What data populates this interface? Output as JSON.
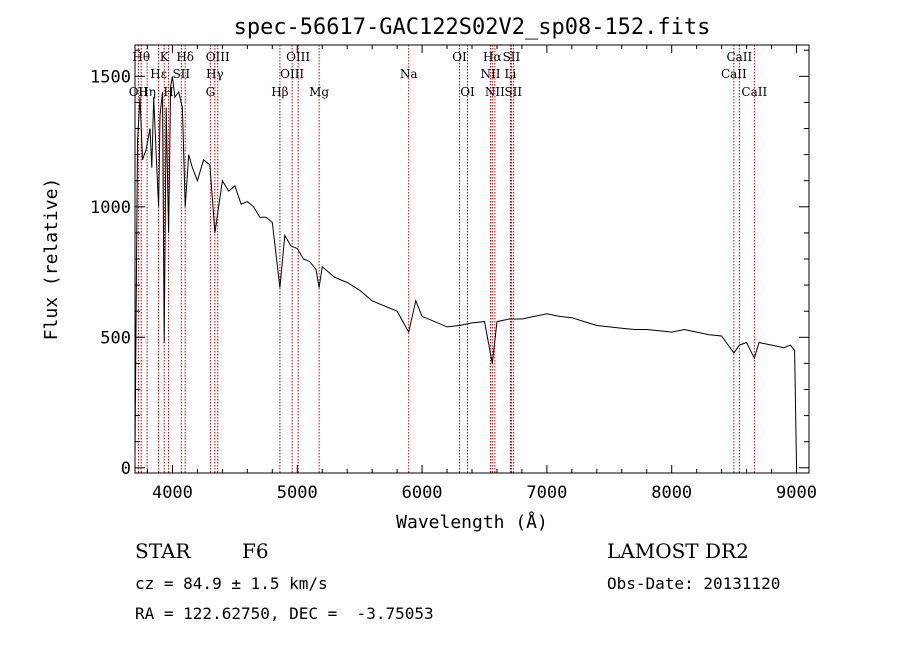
{
  "chart_data": {
    "type": "line",
    "title": "spec-56617-GAC122S02V2_sp08-152.fits",
    "xlabel": "Wavelength (Å)",
    "ylabel": "Flux (relative)",
    "xlim": [
      3700,
      9100
    ],
    "ylim": [
      -20,
      1620
    ],
    "x_ticks": [
      4000,
      5000,
      6000,
      7000,
      8000,
      9000
    ],
    "x_tick_labels": [
      "4000",
      "5000",
      "6000",
      "7000",
      "8000",
      "9000"
    ],
    "y_ticks": [
      0,
      500,
      1000,
      1500
    ],
    "y_tick_labels": [
      "0",
      "500",
      "1000",
      "1500"
    ],
    "grid": false,
    "series": [
      {
        "color": "#000000",
        "x": [
          3700,
          3720,
          3740,
          3760,
          3790,
          3820,
          3835,
          3850,
          3870,
          3889,
          3900,
          3920,
          3934,
          3950,
          3969,
          3985,
          4000,
          4020,
          4050,
          4080,
          4102,
          4130,
          4160,
          4200,
          4250,
          4300,
          4340,
          4400,
          4450,
          4500,
          4550,
          4600,
          4650,
          4700,
          4750,
          4800,
          4861,
          4900,
          4950,
          5000,
          5050,
          5100,
          5150,
          5175,
          5200,
          5300,
          5400,
          5500,
          5600,
          5700,
          5800,
          5893,
          5950,
          6000,
          6100,
          6200,
          6300,
          6400,
          6500,
          6563,
          6600,
          6700,
          6800,
          6900,
          7000,
          7100,
          7200,
          7300,
          7400,
          7500,
          7600,
          7700,
          7800,
          7900,
          8000,
          8100,
          8200,
          8300,
          8400,
          8498,
          8542,
          8600,
          8662,
          8700,
          8800,
          8900,
          8950,
          8985,
          9000
        ],
        "y": [
          50,
          1250,
          1420,
          1180,
          1220,
          1300,
          1150,
          1420,
          1200,
          1000,
          1350,
          1440,
          480,
          1380,
          900,
          1460,
          1500,
          1420,
          1440,
          1380,
          1000,
          1200,
          1150,
          1100,
          1180,
          1160,
          900,
          1100,
          1060,
          1080,
          1010,
          1020,
          1000,
          960,
          960,
          940,
          690,
          890,
          850,
          840,
          800,
          790,
          760,
          690,
          770,
          730,
          710,
          680,
          640,
          620,
          600,
          520,
          640,
          580,
          560,
          540,
          545,
          555,
          560,
          400,
          560,
          570,
          570,
          580,
          590,
          580,
          575,
          560,
          545,
          540,
          535,
          530,
          530,
          525,
          520,
          530,
          520,
          510,
          505,
          440,
          470,
          480,
          420,
          480,
          470,
          460,
          470,
          450,
          10
        ]
      }
    ],
    "line_markers": [
      {
        "wavelength": 3727,
        "label": "OII",
        "row": 3,
        "dy": 0
      },
      {
        "wavelength": 3750,
        "label": "Hθ",
        "row": 1,
        "dy": 0
      },
      {
        "wavelength": 3797,
        "label": "Hη",
        "row": 3,
        "dy": 0
      },
      {
        "wavelength": 3889,
        "label": "Hε",
        "row": 2,
        "dy": 0
      },
      {
        "wavelength": 3934,
        "label": "K",
        "row": 1,
        "dy": 0
      },
      {
        "wavelength": 3969,
        "label": "H",
        "row": 3,
        "dy": 0
      },
      {
        "wavelength": 4071,
        "label": "SII",
        "row": 2,
        "dy": 0
      },
      {
        "wavelength": 4102,
        "label": "Hδ",
        "row": 1,
        "dy": 0
      },
      {
        "wavelength": 4304,
        "label": "G",
        "row": 3,
        "dy": 0
      },
      {
        "wavelength": 4340,
        "label": "Hγ",
        "row": 2,
        "dy": 0
      },
      {
        "wavelength": 4363,
        "label": "OIII",
        "row": 1,
        "dy": 0
      },
      {
        "wavelength": 4861,
        "label": "Hβ",
        "row": 3,
        "dy": 0
      },
      {
        "wavelength": 4959,
        "label": "OIII",
        "row": 2,
        "dy": 0
      },
      {
        "wavelength": 5007,
        "label": "OIII",
        "row": 1,
        "dy": 0
      },
      {
        "wavelength": 5175,
        "label": "Mg",
        "row": 3,
        "dy": 0
      },
      {
        "wavelength": 5893,
        "label": "Na",
        "row": 2,
        "dy": 0
      },
      {
        "wavelength": 6300,
        "label": "OI",
        "row": 1,
        "dy": 0
      },
      {
        "wavelength": 6364,
        "label": "OI",
        "row": 3,
        "dy": 0
      },
      {
        "wavelength": 6548,
        "label": "NII",
        "row": 2,
        "dy": 0
      },
      {
        "wavelength": 6563,
        "label": "Hα",
        "row": 1,
        "dy": 0
      },
      {
        "wavelength": 6583,
        "label": "NII",
        "row": 3,
        "dy": 0
      },
      {
        "wavelength": 6708,
        "label": "Li",
        "row": 2,
        "dy": 0
      },
      {
        "wavelength": 6716,
        "label": "SII",
        "row": 1,
        "dy": 0
      },
      {
        "wavelength": 6731,
        "label": "SII",
        "row": 3,
        "dy": 0
      },
      {
        "wavelength": 8498,
        "label": "CaII",
        "row": 2,
        "dy": 0
      },
      {
        "wavelength": 8542,
        "label": "CaII",
        "row": 1,
        "dy": 0
      },
      {
        "wavelength": 8662,
        "label": "CaII",
        "row": 3,
        "dy": 0
      }
    ],
    "marker_color": "#c00000"
  },
  "info": {
    "class_label": "STAR",
    "subclass": "F6",
    "survey": "LAMOST DR2",
    "redshift": "cz = 84.9 ± 1.5 km/s",
    "obs_date": "Obs-Date: 20131120",
    "coords": "RA = 122.62750, DEC =  -3.75053"
  }
}
